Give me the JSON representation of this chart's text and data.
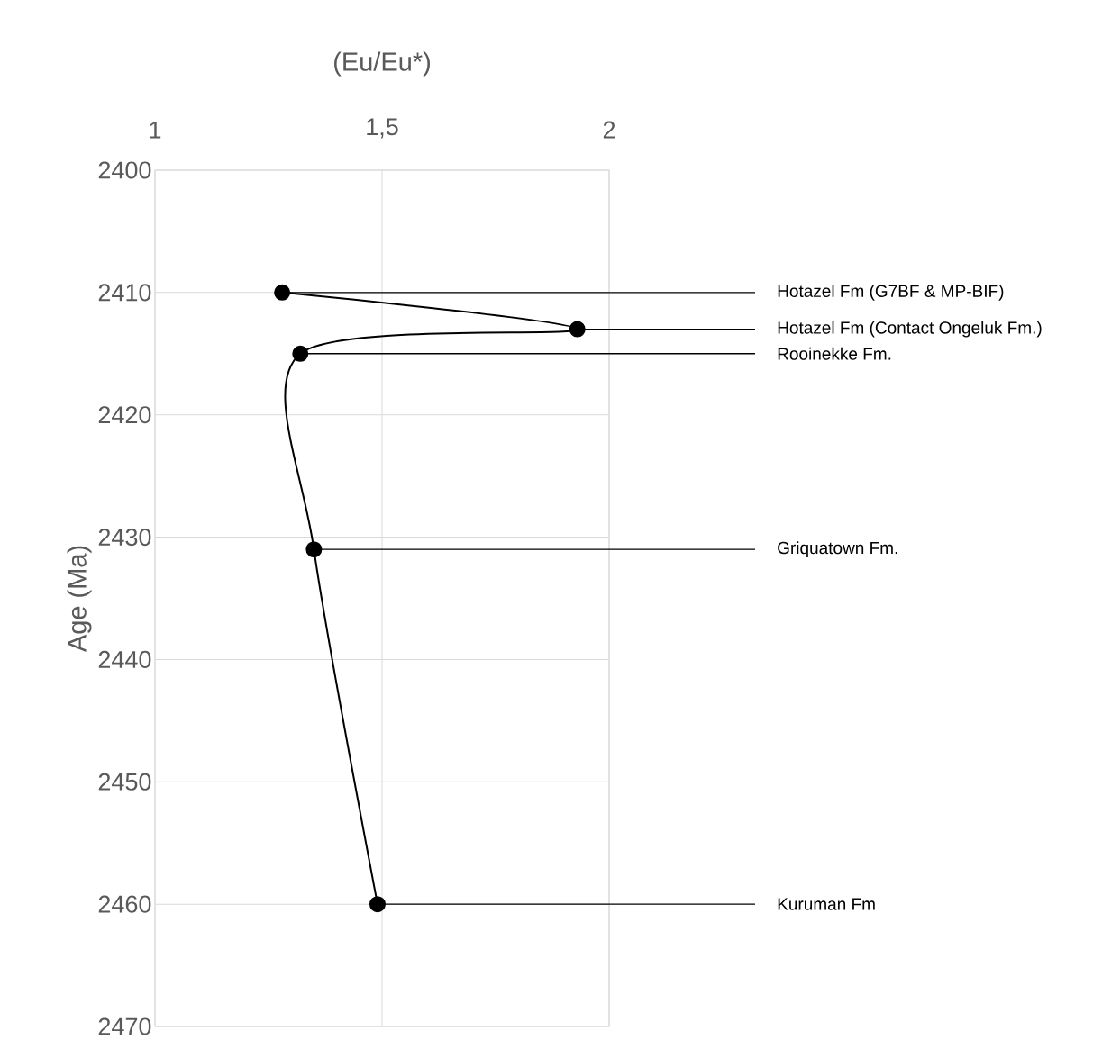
{
  "chart_data": {
    "type": "line",
    "xlabel": "(Eu/Eu*)",
    "ylabel": "Age (Ma)",
    "xlim": [
      1,
      2
    ],
    "ylim": [
      2470,
      2400
    ],
    "xticks": [
      1,
      {
        "value": 1.5,
        "label": "1,5"
      },
      2
    ],
    "yticks": [
      2400,
      2410,
      2420,
      2430,
      2440,
      2450,
      2460,
      2470
    ],
    "grid": true,
    "marker": "circle",
    "series": [
      {
        "color": "#000000",
        "x": [
          1.28,
          1.93,
          1.32,
          1.35,
          1.49
        ],
        "values": [
          2410,
          2413,
          2415,
          2431,
          2460
        ]
      }
    ],
    "annotations": [
      "Hotazel Fm (G7BF & MP-BIF)",
      "Hotazel Fm (Contact Ongeluk Fm.)",
      "Rooinekke Fm.",
      "Griquatown Fm.",
      "Kuruman Fm"
    ]
  }
}
